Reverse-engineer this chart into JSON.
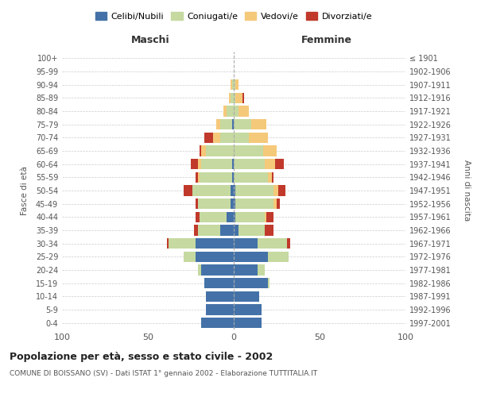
{
  "age_groups": [
    "0-4",
    "5-9",
    "10-14",
    "15-19",
    "20-24",
    "25-29",
    "30-34",
    "35-39",
    "40-44",
    "45-49",
    "50-54",
    "55-59",
    "60-64",
    "65-69",
    "70-74",
    "75-79",
    "80-84",
    "85-89",
    "90-94",
    "95-99",
    "100+"
  ],
  "birth_years": [
    "1997-2001",
    "1992-1996",
    "1987-1991",
    "1982-1986",
    "1977-1981",
    "1972-1976",
    "1967-1971",
    "1962-1966",
    "1957-1961",
    "1952-1956",
    "1947-1951",
    "1942-1946",
    "1937-1941",
    "1932-1936",
    "1927-1931",
    "1922-1926",
    "1917-1921",
    "1912-1916",
    "1907-1911",
    "1902-1906",
    "≤ 1901"
  ],
  "males": {
    "celibi": [
      19,
      16,
      16,
      17,
      19,
      22,
      22,
      8,
      4,
      2,
      2,
      1,
      1,
      0,
      0,
      1,
      0,
      0,
      0,
      0,
      0
    ],
    "coniugati": [
      0,
      0,
      0,
      0,
      2,
      7,
      16,
      13,
      16,
      19,
      22,
      19,
      18,
      16,
      8,
      7,
      4,
      2,
      1,
      0,
      0
    ],
    "vedovi": [
      0,
      0,
      0,
      0,
      0,
      0,
      0,
      0,
      0,
      0,
      0,
      1,
      2,
      3,
      4,
      2,
      2,
      1,
      1,
      0,
      0
    ],
    "divorziati": [
      0,
      0,
      0,
      0,
      0,
      0,
      1,
      2,
      2,
      1,
      5,
      1,
      4,
      1,
      5,
      0,
      0,
      0,
      0,
      0,
      0
    ]
  },
  "females": {
    "nubili": [
      16,
      16,
      15,
      20,
      14,
      20,
      14,
      3,
      1,
      1,
      1,
      0,
      0,
      0,
      0,
      0,
      0,
      0,
      0,
      0,
      0
    ],
    "coniugate": [
      0,
      0,
      0,
      1,
      4,
      12,
      17,
      15,
      17,
      22,
      22,
      20,
      18,
      17,
      9,
      10,
      3,
      1,
      1,
      0,
      0
    ],
    "vedove": [
      0,
      0,
      0,
      0,
      0,
      0,
      0,
      0,
      1,
      2,
      3,
      2,
      6,
      8,
      11,
      9,
      6,
      4,
      2,
      0,
      0
    ],
    "divorziate": [
      0,
      0,
      0,
      0,
      0,
      0,
      2,
      5,
      4,
      2,
      4,
      1,
      5,
      0,
      0,
      0,
      0,
      1,
      0,
      0,
      0
    ]
  },
  "colors": {
    "celibi": "#4472a8",
    "coniugati": "#c5d9a0",
    "vedovi": "#f5c97a",
    "divorziati": "#c0392b"
  },
  "title": "Popolazione per età, sesso e stato civile - 2002",
  "subtitle": "COMUNE DI BOISSANO (SV) - Dati ISTAT 1° gennaio 2002 - Elaborazione TUTTITALIA.IT",
  "xlabel_left": "Maschi",
  "xlabel_right": "Femmine",
  "ylabel_left": "Fasce di età",
  "ylabel_right": "Anni di nascita",
  "xlim": 100,
  "background_color": "#ffffff"
}
